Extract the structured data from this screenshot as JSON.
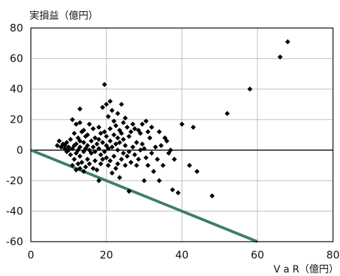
{
  "chart_data": {
    "type": "scatter",
    "xlabel": "V a R（億円）",
    "ylabel": "実損益（億円）",
    "xlim": [
      0,
      80
    ],
    "ylim": [
      -60,
      80
    ],
    "x_ticks": [
      0,
      20,
      40,
      60,
      80
    ],
    "y_ticks": [
      80,
      60,
      40,
      20,
      0,
      -20,
      -40,
      -60
    ],
    "x_tick_labels": [
      "0",
      "20",
      "40",
      "60",
      "80"
    ],
    "y_tick_labels": [
      "80",
      "60",
      "40",
      "20",
      "0",
      "-20",
      "-40",
      "-60"
    ],
    "grid": true,
    "colors": {
      "marker": "#000000",
      "reference_line": "#3f7f63",
      "grid": "#bdbdbd",
      "zero_line": "#000000"
    },
    "reference_line": {
      "points": [
        [
          0,
          0
        ],
        [
          60,
          -60
        ]
      ]
    },
    "points": [
      [
        7,
        3
      ],
      [
        7.5,
        6
      ],
      [
        8,
        2
      ],
      [
        8.5,
        4
      ],
      [
        9,
        1
      ],
      [
        9,
        3
      ],
      [
        9.5,
        -1
      ],
      [
        9.5,
        5
      ],
      [
        10,
        0
      ],
      [
        10,
        2
      ],
      [
        10.5,
        -3
      ],
      [
        10.5,
        7
      ],
      [
        11,
        -10
      ],
      [
        11,
        20
      ],
      [
        11,
        1
      ],
      [
        11.5,
        -6
      ],
      [
        11.5,
        11
      ],
      [
        11.5,
        3
      ],
      [
        12,
        -13
      ],
      [
        12,
        17
      ],
      [
        12,
        -2
      ],
      [
        12,
        4
      ],
      [
        12.5,
        -9
      ],
      [
        12.5,
        8
      ],
      [
        12.5,
        0
      ],
      [
        13,
        -12
      ],
      [
        13,
        27
      ],
      [
        13,
        18
      ],
      [
        13,
        -4
      ],
      [
        13,
        2
      ],
      [
        13,
        6
      ],
      [
        13.5,
        -8
      ],
      [
        13.5,
        12
      ],
      [
        14,
        -14
      ],
      [
        14,
        13
      ],
      [
        14,
        -1
      ],
      [
        14,
        5
      ],
      [
        14.5,
        -11
      ],
      [
        14.5,
        9
      ],
      [
        14.5,
        1
      ],
      [
        15,
        -6
      ],
      [
        15,
        10
      ],
      [
        15,
        3
      ],
      [
        15.5,
        -9
      ],
      [
        15.5,
        17
      ],
      [
        15.5,
        0
      ],
      [
        16,
        -2
      ],
      [
        16,
        6
      ],
      [
        16.5,
        -12
      ],
      [
        16.5,
        14
      ],
      [
        16.5,
        2
      ],
      [
        17,
        -7
      ],
      [
        17,
        8
      ],
      [
        17,
        -1
      ],
      [
        17.5,
        -13
      ],
      [
        17.5,
        4
      ],
      [
        18,
        -20
      ],
      [
        18,
        15
      ],
      [
        18,
        1
      ],
      [
        18,
        7
      ],
      [
        18.5,
        -9
      ],
      [
        18.5,
        11
      ],
      [
        18.5,
        -3
      ],
      [
        19,
        28
      ],
      [
        19,
        5
      ],
      [
        19,
        -6
      ],
      [
        19.5,
        43
      ],
      [
        19.5,
        12
      ],
      [
        19.5,
        -1
      ],
      [
        20,
        30
      ],
      [
        20,
        3
      ],
      [
        20,
        -5
      ],
      [
        20,
        9
      ],
      [
        20.5,
        22
      ],
      [
        20.5,
        -10
      ],
      [
        20.5,
        1
      ],
      [
        21,
        32
      ],
      [
        21,
        14
      ],
      [
        21,
        -7
      ],
      [
        21,
        6
      ],
      [
        21.5,
        26
      ],
      [
        21.5,
        -15
      ],
      [
        21.5,
        2
      ],
      [
        22,
        19
      ],
      [
        22,
        -4
      ],
      [
        22,
        10
      ],
      [
        22.5,
        16
      ],
      [
        22.5,
        -12
      ],
      [
        22.5,
        4
      ],
      [
        23,
        24
      ],
      [
        23,
        -9
      ],
      [
        23,
        8
      ],
      [
        23,
        0
      ],
      [
        23.5,
        13
      ],
      [
        23.5,
        -18
      ],
      [
        23.5,
        5
      ],
      [
        24,
        30
      ],
      [
        24,
        -6
      ],
      [
        24,
        11
      ],
      [
        24.5,
        18
      ],
      [
        24.5,
        -2
      ],
      [
        24.5,
        7
      ],
      [
        25,
        21
      ],
      [
        25,
        -10
      ],
      [
        25,
        3
      ],
      [
        25.5,
        15
      ],
      [
        25.5,
        -4
      ],
      [
        26,
        -27
      ],
      [
        26,
        9
      ],
      [
        26,
        -1
      ],
      [
        26.5,
        12
      ],
      [
        26.5,
        -8
      ],
      [
        27,
        17
      ],
      [
        27,
        2
      ],
      [
        27.5,
        14
      ],
      [
        27.5,
        -3
      ],
      [
        28,
        5
      ],
      [
        28,
        -10
      ],
      [
        28.5,
        13
      ],
      [
        28.5,
        -6
      ],
      [
        29,
        11
      ],
      [
        29,
        0
      ],
      [
        29.5,
        17
      ],
      [
        29.5,
        4
      ],
      [
        30,
        -20
      ],
      [
        30,
        1
      ],
      [
        30.5,
        19
      ],
      [
        30.5,
        -5
      ],
      [
        31,
        12
      ],
      [
        31,
        -10
      ],
      [
        31.5,
        8
      ],
      [
        32,
        -2
      ],
      [
        32,
        15
      ],
      [
        32.5,
        -14
      ],
      [
        33,
        2
      ],
      [
        33.5,
        -6
      ],
      [
        34,
        12
      ],
      [
        34,
        -20
      ],
      [
        34.5,
        3
      ],
      [
        35,
        -10
      ],
      [
        35.5,
        8
      ],
      [
        36,
        6
      ],
      [
        36.5,
        -2
      ],
      [
        37,
        0
      ],
      [
        37.5,
        -26
      ],
      [
        38,
        -6
      ],
      [
        39,
        -28
      ],
      [
        40,
        17
      ],
      [
        42,
        -10
      ],
      [
        43,
        15
      ],
      [
        44,
        -14
      ],
      [
        48,
        -30
      ],
      [
        52,
        24
      ],
      [
        58,
        40
      ],
      [
        66,
        61
      ],
      [
        68,
        71
      ]
    ]
  }
}
